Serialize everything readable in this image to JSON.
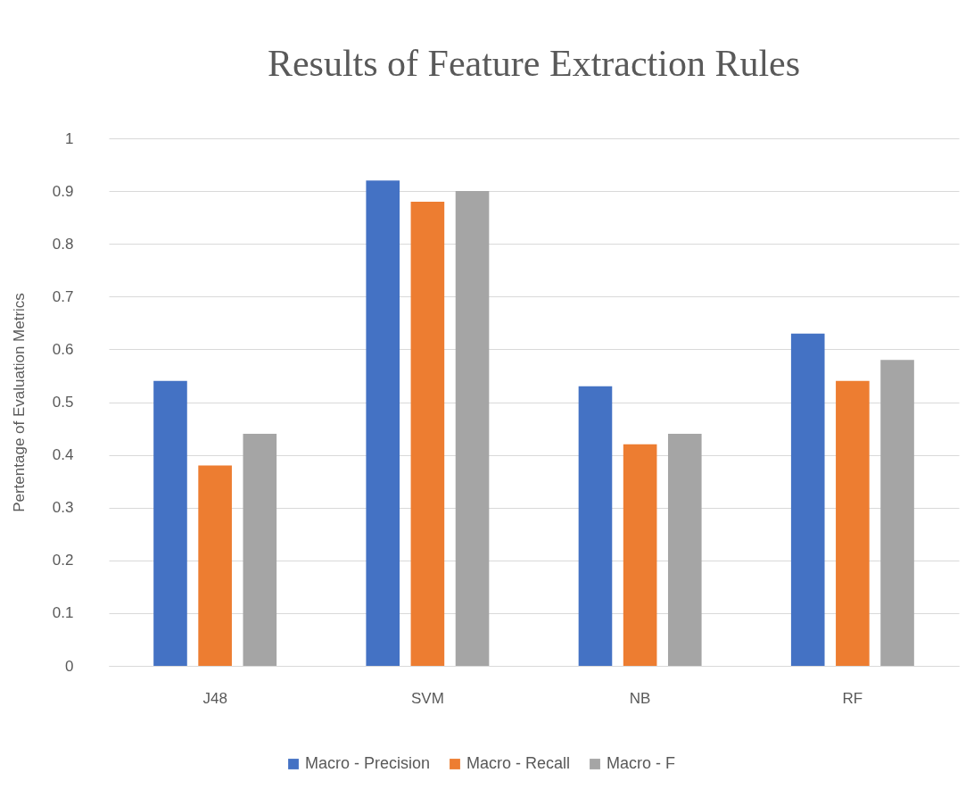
{
  "chart_data": {
    "type": "bar",
    "title": "Results of Feature Extraction Rules",
    "ylabel": "Pertentage  of Evaluation Metrics",
    "categories": [
      "J48",
      "SVM",
      "NB",
      "RF"
    ],
    "series": [
      {
        "name": "Macro - Precision",
        "color": "#4472c4",
        "values": [
          0.54,
          0.92,
          0.53,
          0.63
        ]
      },
      {
        "name": "Macro - Recall",
        "color": "#ed7d31",
        "values": [
          0.38,
          0.88,
          0.42,
          0.54
        ]
      },
      {
        "name": "Macro - F",
        "color": "#a5a5a5",
        "values": [
          0.44,
          0.9,
          0.44,
          0.58
        ]
      }
    ],
    "ylim": [
      0,
      1
    ],
    "yticks": [
      0,
      0.1,
      0.2,
      0.3,
      0.4,
      0.5,
      0.6,
      0.7,
      0.8,
      0.9,
      1
    ],
    "grid": "y",
    "legend": "bottom"
  }
}
